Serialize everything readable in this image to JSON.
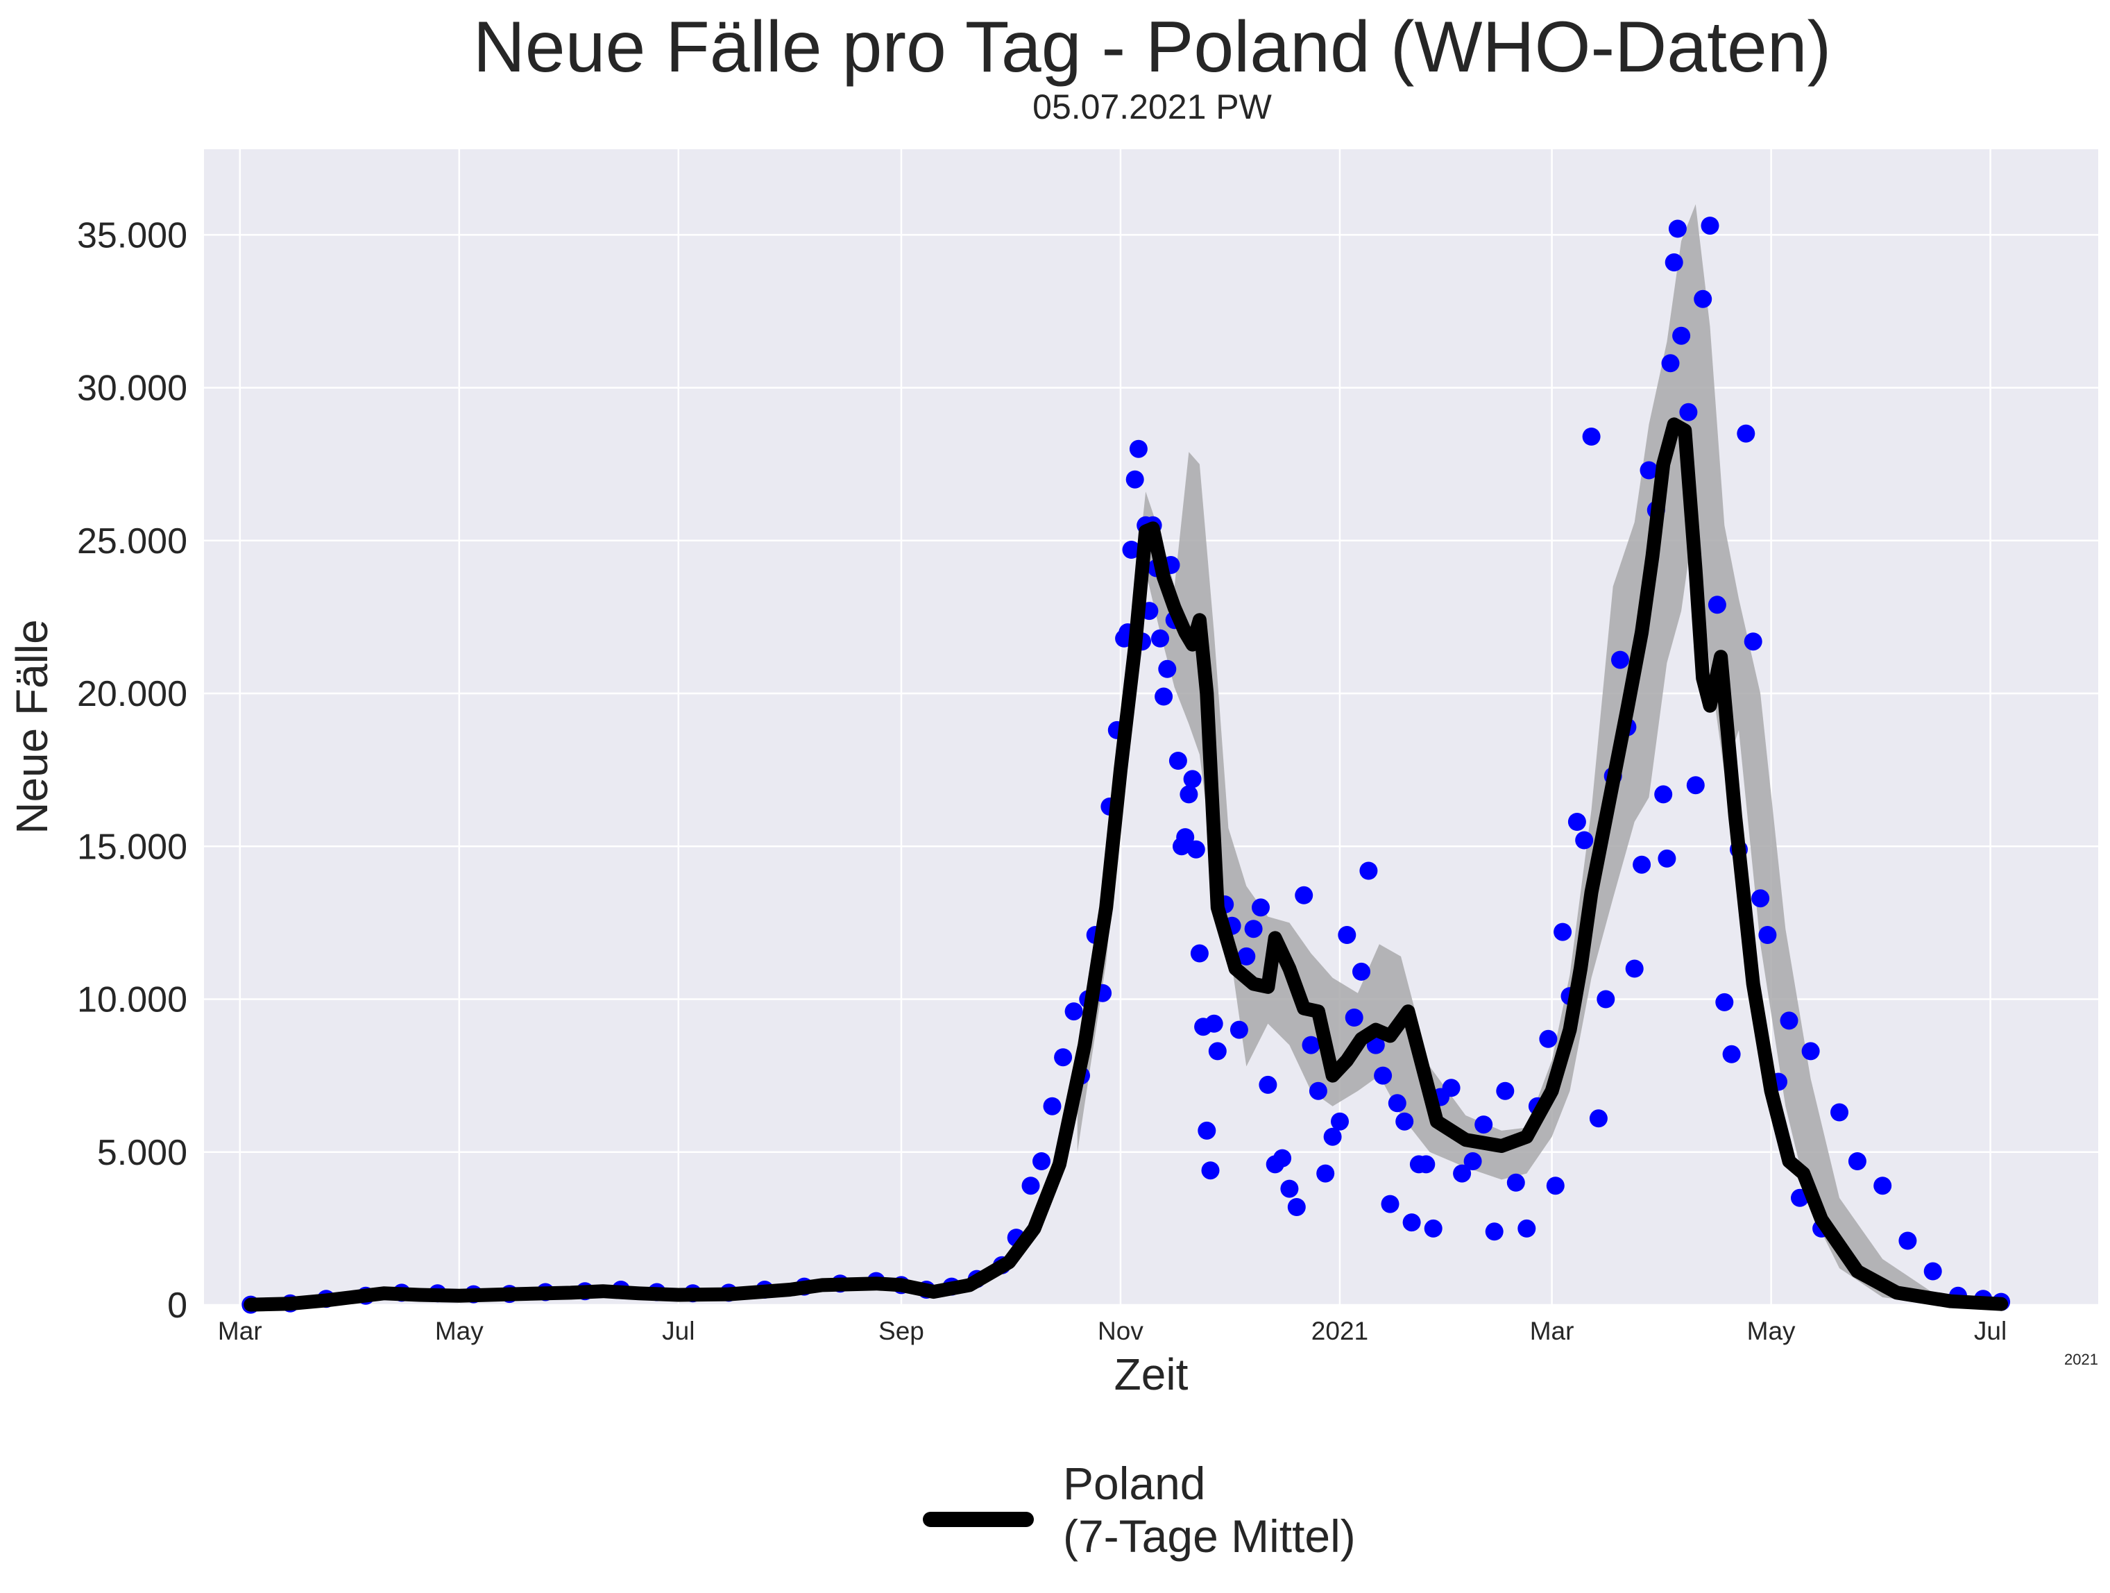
{
  "chart_data": {
    "type": "line",
    "title": "Neue Fälle pro Tag - Poland (WHO-Daten)",
    "subtitle": "05.07.2021 PW",
    "xlabel": "Zeit",
    "ylabel": "Neue Fälle",
    "x_offset_label": "2021",
    "ylim": [
      0,
      37800
    ],
    "xlim": [
      "2020-02-20",
      "2021-07-31"
    ],
    "grid": true,
    "legend_position": "bottom-center",
    "y_ticks": [
      {
        "value": 0,
        "label": "0"
      },
      {
        "value": 5000,
        "label": "5.000"
      },
      {
        "value": 10000,
        "label": "10.000"
      },
      {
        "value": 15000,
        "label": "15.000"
      },
      {
        "value": 20000,
        "label": "20.000"
      },
      {
        "value": 25000,
        "label": "25.000"
      },
      {
        "value": 30000,
        "label": "30.000"
      },
      {
        "value": 35000,
        "label": "35.000"
      }
    ],
    "x_ticks": [
      {
        "value": "2020-03-01",
        "label": "Mar"
      },
      {
        "value": "2020-05-01",
        "label": "May"
      },
      {
        "value": "2020-07-01",
        "label": "Jul"
      },
      {
        "value": "2020-09-01",
        "label": "Sep"
      },
      {
        "value": "2020-11-01",
        "label": "Nov"
      },
      {
        "value": "2021-01-01",
        "label": "2021"
      },
      {
        "value": "2021-03-01",
        "label": "Mar"
      },
      {
        "value": "2021-05-01",
        "label": "May"
      },
      {
        "value": "2021-07-01",
        "label": "Jul"
      }
    ],
    "series": [
      {
        "name": "Poland\n(7-Tage Mittel)",
        "legend_line1": "Poland",
        "legend_line2": "(7-Tage Mittel)",
        "color": "#000000",
        "x": [
          "2020-03-04",
          "2020-03-15",
          "2020-03-25",
          "2020-04-01",
          "2020-04-10",
          "2020-04-20",
          "2020-05-01",
          "2020-05-15",
          "2020-06-01",
          "2020-06-10",
          "2020-06-20",
          "2020-07-01",
          "2020-07-15",
          "2020-08-01",
          "2020-08-10",
          "2020-08-25",
          "2020-09-01",
          "2020-09-10",
          "2020-09-20",
          "2020-10-01",
          "2020-10-08",
          "2020-10-15",
          "2020-10-22",
          "2020-10-28",
          "2020-11-01",
          "2020-11-05",
          "2020-11-08",
          "2020-11-10",
          "2020-11-13",
          "2020-11-16",
          "2020-11-19",
          "2020-11-21",
          "2020-11-23",
          "2020-11-25",
          "2020-11-28",
          "2020-12-03",
          "2020-12-08",
          "2020-12-12",
          "2020-12-14",
          "2020-12-18",
          "2020-12-22",
          "2020-12-26",
          "2020-12-30",
          "2021-01-03",
          "2021-01-07",
          "2021-01-11",
          "2021-01-15",
          "2021-01-20",
          "2021-01-28",
          "2021-02-05",
          "2021-02-15",
          "2021-02-22",
          "2021-03-01",
          "2021-03-06",
          "2021-03-09",
          "2021-03-12",
          "2021-03-17",
          "2021-03-22",
          "2021-03-26",
          "2021-03-29",
          "2021-04-01",
          "2021-04-04",
          "2021-04-07",
          "2021-04-10",
          "2021-04-12",
          "2021-04-14",
          "2021-04-17",
          "2021-04-21",
          "2021-04-26",
          "2021-05-01",
          "2021-05-06",
          "2021-05-10",
          "2021-05-15",
          "2021-05-25",
          "2021-06-05",
          "2021-06-20",
          "2021-07-04"
        ],
        "y": [
          10,
          40,
          150,
          250,
          380,
          330,
          300,
          350,
          400,
          450,
          380,
          330,
          350,
          500,
          650,
          700,
          650,
          430,
          650,
          1400,
          2500,
          4600,
          8500,
          13000,
          17500,
          21500,
          25300,
          25400,
          23800,
          22800,
          22000,
          21600,
          22400,
          20000,
          13000,
          11000,
          10500,
          10400,
          12000,
          11000,
          9700,
          9600,
          7500,
          8000,
          8700,
          9000,
          8800,
          9600,
          6000,
          5400,
          5200,
          5500,
          7000,
          9000,
          11000,
          13500,
          16500,
          19500,
          22000,
          24500,
          27500,
          28800,
          28600,
          24000,
          20500,
          19600,
          21200,
          16000,
          10500,
          7000,
          4700,
          4300,
          2800,
          1100,
          400,
          120,
          30
        ]
      }
    ],
    "band_x": [
      "2020-10-20",
      "2020-10-28",
      "2020-11-01",
      "2020-11-05",
      "2020-11-08",
      "2020-11-12",
      "2020-11-16",
      "2020-11-20",
      "2020-11-23",
      "2020-11-27",
      "2020-12-01",
      "2020-12-06",
      "2020-12-12",
      "2020-12-18",
      "2020-12-24",
      "2020-12-30",
      "2021-01-06",
      "2021-01-12",
      "2021-01-18",
      "2021-01-26",
      "2021-02-05",
      "2021-02-15",
      "2021-02-22",
      "2021-03-01",
      "2021-03-06",
      "2021-03-12",
      "2021-03-18",
      "2021-03-24",
      "2021-03-28",
      "2021-04-02",
      "2021-04-06",
      "2021-04-10",
      "2021-04-14",
      "2021-04-18",
      "2021-04-22",
      "2021-04-28",
      "2021-05-05",
      "2021-05-12",
      "2021-05-20",
      "2021-06-01",
      "2021-06-15",
      "2021-07-04"
    ],
    "band_upper": [
      7000,
      13800,
      18800,
      23300,
      26600,
      25200,
      23500,
      27900,
      27500,
      22000,
      15600,
      13700,
      12700,
      12500,
      11500,
      10700,
      10200,
      11800,
      11400,
      7800,
      6200,
      5700,
      5800,
      8000,
      10800,
      16200,
      23500,
      25600,
      28800,
      31500,
      34800,
      36000,
      32000,
      25500,
      23100,
      20000,
      12300,
      7400,
      3500,
      1500,
      400,
      80
    ],
    "band_lower": [
      5000,
      11200,
      16200,
      21700,
      24000,
      22000,
      20200,
      19000,
      18000,
      14200,
      11900,
      7800,
      9200,
      8500,
      7000,
      6500,
      7000,
      7500,
      6200,
      5000,
      4500,
      4100,
      4300,
      5500,
      7000,
      10700,
      13300,
      15800,
      16600,
      21000,
      22700,
      26000,
      20800,
      17400,
      18800,
      11800,
      6500,
      3100,
      1200,
      250,
      40,
      5
    ],
    "daily_x": [
      "2020-03-04",
      "2020-03-15",
      "2020-03-25",
      "2020-04-05",
      "2020-04-15",
      "2020-04-25",
      "2020-05-05",
      "2020-05-15",
      "2020-05-25",
      "2020-06-05",
      "2020-06-15",
      "2020-06-25",
      "2020-07-05",
      "2020-07-15",
      "2020-07-25",
      "2020-08-05",
      "2020-08-15",
      "2020-08-25",
      "2020-09-01",
      "2020-09-08",
      "2020-09-15",
      "2020-09-22",
      "2020-09-29",
      "2020-10-03",
      "2020-10-07",
      "2020-10-10",
      "2020-10-13",
      "2020-10-16",
      "2020-10-19",
      "2020-10-21",
      "2020-10-23",
      "2020-10-25",
      "2020-10-27",
      "2020-10-29",
      "2020-10-31",
      "2020-11-02",
      "2020-11-03",
      "2020-11-04",
      "2020-11-05",
      "2020-11-06",
      "2020-11-07",
      "2020-11-08",
      "2020-11-09",
      "2020-11-10",
      "2020-11-11",
      "2020-11-12",
      "2020-11-13",
      "2020-11-14",
      "2020-11-15",
      "2020-11-16",
      "2020-11-17",
      "2020-11-18",
      "2020-11-19",
      "2020-11-20",
      "2020-11-21",
      "2020-11-22",
      "2020-11-23",
      "2020-11-24",
      "2020-11-25",
      "2020-11-26",
      "2020-11-27",
      "2020-11-28",
      "2020-11-30",
      "2020-12-02",
      "2020-12-04",
      "2020-12-06",
      "2020-12-08",
      "2020-12-10",
      "2020-12-12",
      "2020-12-14",
      "2020-12-16",
      "2020-12-18",
      "2020-12-20",
      "2020-12-22",
      "2020-12-24",
      "2020-12-26",
      "2020-12-28",
      "2020-12-30",
      "2021-01-01",
      "2021-01-03",
      "2021-01-05",
      "2021-01-07",
      "2021-01-09",
      "2021-01-11",
      "2021-01-13",
      "2021-01-15",
      "2021-01-17",
      "2021-01-19",
      "2021-01-21",
      "2021-01-23",
      "2021-01-25",
      "2021-01-27",
      "2021-01-29",
      "2021-02-01",
      "2021-02-04",
      "2021-02-07",
      "2021-02-10",
      "2021-02-13",
      "2021-02-16",
      "2021-02-19",
      "2021-02-22",
      "2021-02-25",
      "2021-02-28",
      "2021-03-02",
      "2021-03-04",
      "2021-03-06",
      "2021-03-08",
      "2021-03-10",
      "2021-03-12",
      "2021-03-14",
      "2021-03-16",
      "2021-03-18",
      "2021-03-20",
      "2021-03-22",
      "2021-03-24",
      "2021-03-26",
      "2021-03-28",
      "2021-03-30",
      "2021-04-01",
      "2021-04-02",
      "2021-04-03",
      "2021-04-04",
      "2021-04-05",
      "2021-04-06",
      "2021-04-08",
      "2021-04-10",
      "2021-04-12",
      "2021-04-14",
      "2021-04-16",
      "2021-04-18",
      "2021-04-20",
      "2021-04-22",
      "2021-04-24",
      "2021-04-26",
      "2021-04-28",
      "2021-04-30",
      "2021-05-03",
      "2021-05-06",
      "2021-05-09",
      "2021-05-12",
      "2021-05-15",
      "2021-05-20",
      "2021-05-25",
      "2021-06-01",
      "2021-06-08",
      "2021-06-15",
      "2021-06-22",
      "2021-06-29",
      "2021-07-04"
    ],
    "daily_y": [
      10,
      50,
      200,
      300,
      400,
      380,
      350,
      360,
      420,
      450,
      500,
      420,
      380,
      400,
      500,
      600,
      700,
      780,
      650,
      500,
      600,
      850,
      1300,
      2200,
      3900,
      4700,
      6500,
      8100,
      9600,
      7500,
      10000,
      12100,
      10200,
      16300,
      18800,
      21800,
      22000,
      24700,
      27000,
      28000,
      21700,
      25500,
      22700,
      25500,
      24100,
      21800,
      19900,
      20800,
      24200,
      22400,
      17800,
      15000,
      15300,
      16700,
      17200,
      14900,
      11500,
      9100,
      5700,
      4400,
      9200,
      8300,
      13100,
      12400,
      9000,
      11400,
      12300,
      13000,
      7200,
      4600,
      4800,
      3800,
      3200,
      13400,
      8500,
      7000,
      4300,
      5500,
      6000,
      12100,
      9400,
      10900,
      14200,
      8500,
      7500,
      3300,
      6600,
      6000,
      2700,
      4600,
      4600,
      2500,
      6800,
      7100,
      4300,
      4700,
      5900,
      2400,
      7000,
      4000,
      2500,
      6500,
      8700,
      3900,
      12200,
      10100,
      15800,
      15200,
      28400,
      6100,
      10000,
      17300,
      21100,
      18900,
      11000,
      14400,
      27300,
      26000,
      16700,
      14600,
      30800,
      34100,
      35200,
      31700,
      29200,
      17000,
      32900,
      35300,
      22900,
      9900,
      8200,
      14900,
      28500,
      21700,
      13300,
      12100,
      7300,
      9300,
      3500,
      8300,
      2500,
      6300,
      4700,
      3900,
      2100,
      1100,
      300,
      200,
      100,
      50,
      30
    ]
  }
}
